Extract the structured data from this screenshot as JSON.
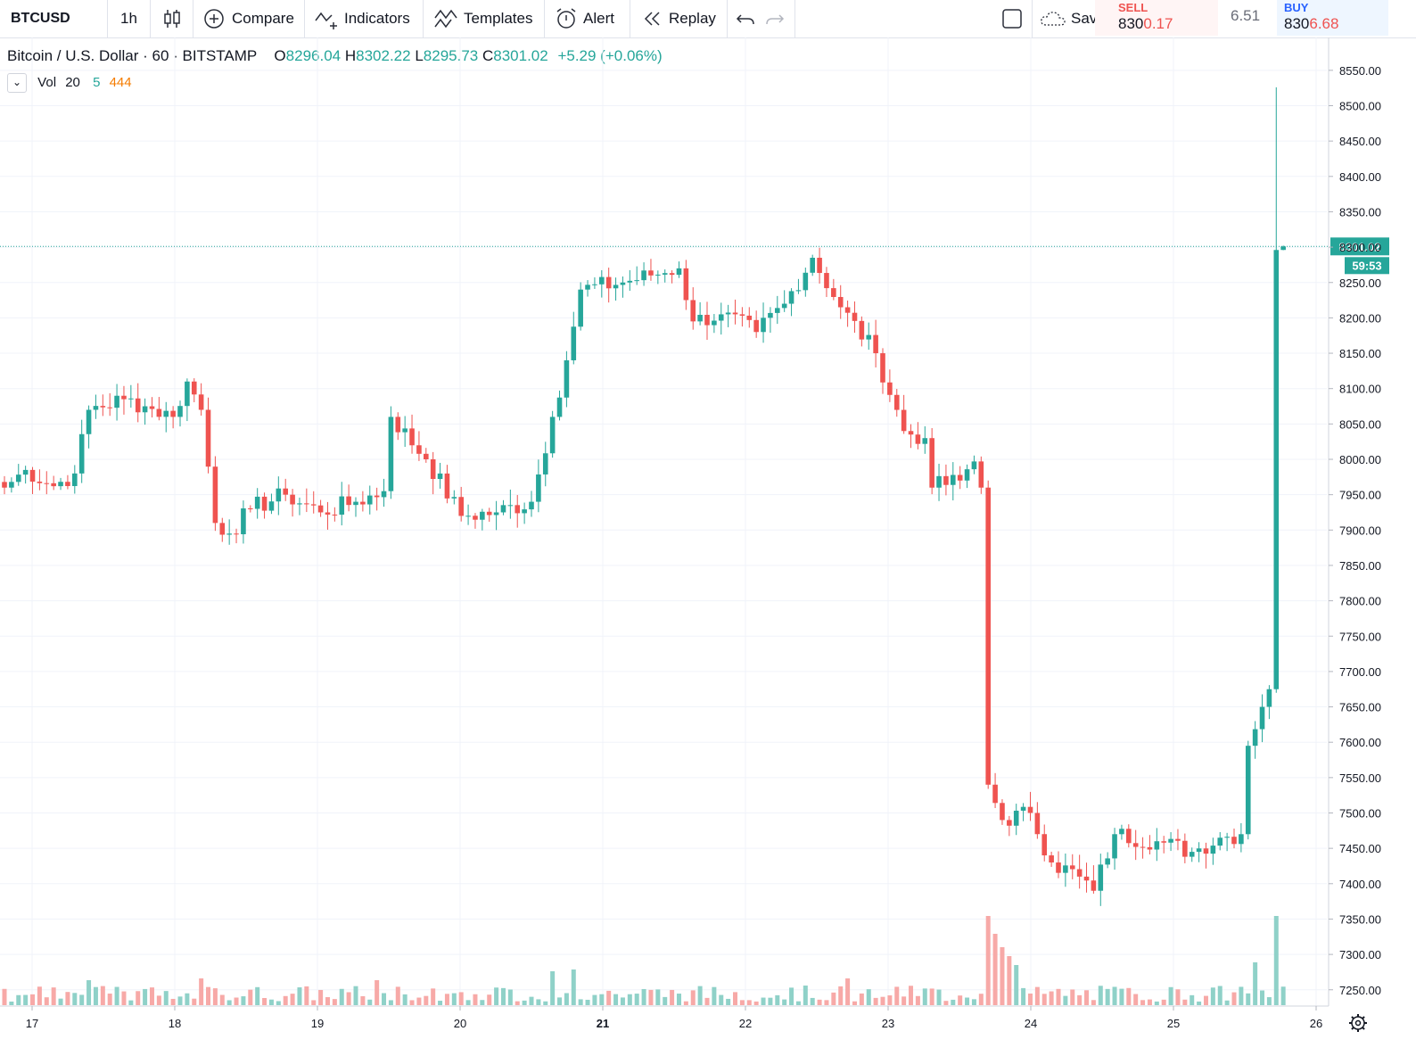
{
  "toolbar": {
    "symbol": "BTCUSD",
    "interval": "1h",
    "compare": "Compare",
    "indicators": "Indicators",
    "templates": "Templates",
    "alert": "Alert",
    "replay": "Replay",
    "save": "Sav",
    "sell_label": "SELL",
    "sell_price_a": "830",
    "sell_price_b": "0.17",
    "spread": "6.51",
    "buy_label": "BUY",
    "buy_price_a": "830",
    "buy_price_b": "6.68"
  },
  "legend": {
    "title": "Bitcoin / U.S. Dollar · 60 · BITSTAMP",
    "o_label": "O",
    "o_value": "8296.04",
    "h_label": "H",
    "h_value": "8302.22",
    "l_label": "L",
    "l_value": "8295.73",
    "c_label": "C",
    "c_value": "8301.02",
    "change": "+5.29 (+0.06%)"
  },
  "vol_legend": {
    "label": "Vol",
    "length": "20",
    "value_a": "5",
    "value_b": "444"
  },
  "price_label": "8301.02",
  "countdown": "59:53",
  "colors": {
    "up": "#26a69a",
    "down": "#ef5350",
    "vol_up": "#8fd1c8",
    "vol_down": "#f7a9a7",
    "axis_text": "#131722",
    "grid": "#f0f3fa"
  },
  "chart_data": {
    "type": "candlestick",
    "x_axis": {
      "labels": [
        "17",
        "18",
        "19",
        "20",
        "21",
        "22",
        "23",
        "24",
        "25",
        "26"
      ],
      "bold_label": "21"
    },
    "y_axis": {
      "range": [
        7225,
        8580
      ],
      "ticks": [
        "8550.00",
        "8500.00",
        "8450.00",
        "8400.00",
        "8350.00",
        "8300.00",
        "8250.00",
        "8200.00",
        "8150.00",
        "8100.00",
        "8050.00",
        "8000.00",
        "7950.00",
        "7900.00",
        "7850.00",
        "7800.00",
        "7750.00",
        "7700.00",
        "7650.00",
        "7600.00",
        "7550.00",
        "7500.00",
        "7450.00",
        "7400.00",
        "7350.00",
        "7300.00",
        "7250.00"
      ]
    },
    "last_price": 8301.02,
    "anchors": [
      {
        "i": 0,
        "p": 7960
      },
      {
        "i": 3,
        "p": 7985
      },
      {
        "i": 7,
        "p": 7962
      },
      {
        "i": 10,
        "p": 7980
      },
      {
        "i": 12,
        "p": 8070
      },
      {
        "i": 17,
        "p": 8085
      },
      {
        "i": 20,
        "p": 8075
      },
      {
        "i": 24,
        "p": 8060
      },
      {
        "i": 26,
        "p": 8110
      },
      {
        "i": 28,
        "p": 8070
      },
      {
        "i": 30,
        "p": 7910
      },
      {
        "i": 32,
        "p": 7895
      },
      {
        "i": 35,
        "p": 7930
      },
      {
        "i": 40,
        "p": 7950
      },
      {
        "i": 45,
        "p": 7925
      },
      {
        "i": 50,
        "p": 7940
      },
      {
        "i": 54,
        "p": 7955
      },
      {
        "i": 55,
        "p": 8060
      },
      {
        "i": 60,
        "p": 8000
      },
      {
        "i": 65,
        "p": 7920
      },
      {
        "i": 70,
        "p": 7925
      },
      {
        "i": 75,
        "p": 7940
      },
      {
        "i": 78,
        "p": 8060
      },
      {
        "i": 80,
        "p": 8140
      },
      {
        "i": 82,
        "p": 8240
      },
      {
        "i": 88,
        "p": 8250
      },
      {
        "i": 92,
        "p": 8260
      },
      {
        "i": 96,
        "p": 8270
      },
      {
        "i": 98,
        "p": 8195
      },
      {
        "i": 102,
        "p": 8205
      },
      {
        "i": 107,
        "p": 8180
      },
      {
        "i": 111,
        "p": 8220
      },
      {
        "i": 115,
        "p": 8285
      },
      {
        "i": 119,
        "p": 8215
      },
      {
        "i": 124,
        "p": 8150
      },
      {
        "i": 128,
        "p": 8040
      },
      {
        "i": 131,
        "p": 8030
      },
      {
        "i": 132,
        "p": 7960
      },
      {
        "i": 136,
        "p": 7970
      },
      {
        "i": 138,
        "p": 7997
      },
      {
        "i": 139,
        "p": 7960
      },
      {
        "i": 140,
        "p": 7540
      },
      {
        "i": 142,
        "p": 7490
      },
      {
        "i": 146,
        "p": 7500
      },
      {
        "i": 149,
        "p": 7430
      },
      {
        "i": 153,
        "p": 7410
      },
      {
        "i": 155,
        "p": 7390
      },
      {
        "i": 158,
        "p": 7470
      },
      {
        "i": 164,
        "p": 7460
      },
      {
        "i": 169,
        "p": 7445
      },
      {
        "i": 173,
        "p": 7465
      },
      {
        "i": 176,
        "p": 7470
      },
      {
        "i": 177,
        "p": 7595
      },
      {
        "i": 179,
        "p": 7650
      },
      {
        "i": 180,
        "p": 7675
      },
      {
        "i": 181,
        "p": 8296
      },
      {
        "i": 182,
        "p": 8301
      }
    ],
    "special_candles": [
      {
        "i": 181,
        "open": 7675,
        "high": 8526,
        "low": 7670,
        "close": 8296
      },
      {
        "i": 182,
        "open": 8296.04,
        "high": 8302.22,
        "low": 8295.73,
        "close": 8301.02
      }
    ],
    "volume_spikes": [
      {
        "i": 140,
        "v": 1.0
      },
      {
        "i": 141,
        "v": 0.8
      },
      {
        "i": 142,
        "v": 0.65
      },
      {
        "i": 143,
        "v": 0.55
      },
      {
        "i": 144,
        "v": 0.45
      },
      {
        "i": 178,
        "v": 0.48
      },
      {
        "i": 181,
        "v": 1.0
      },
      {
        "i": 81,
        "v": 0.4
      },
      {
        "i": 78,
        "v": 0.38
      },
      {
        "i": 28,
        "v": 0.3
      },
      {
        "i": 53,
        "v": 0.28
      },
      {
        "i": 120,
        "v": 0.3
      },
      {
        "i": 12,
        "v": 0.28
      }
    ]
  }
}
